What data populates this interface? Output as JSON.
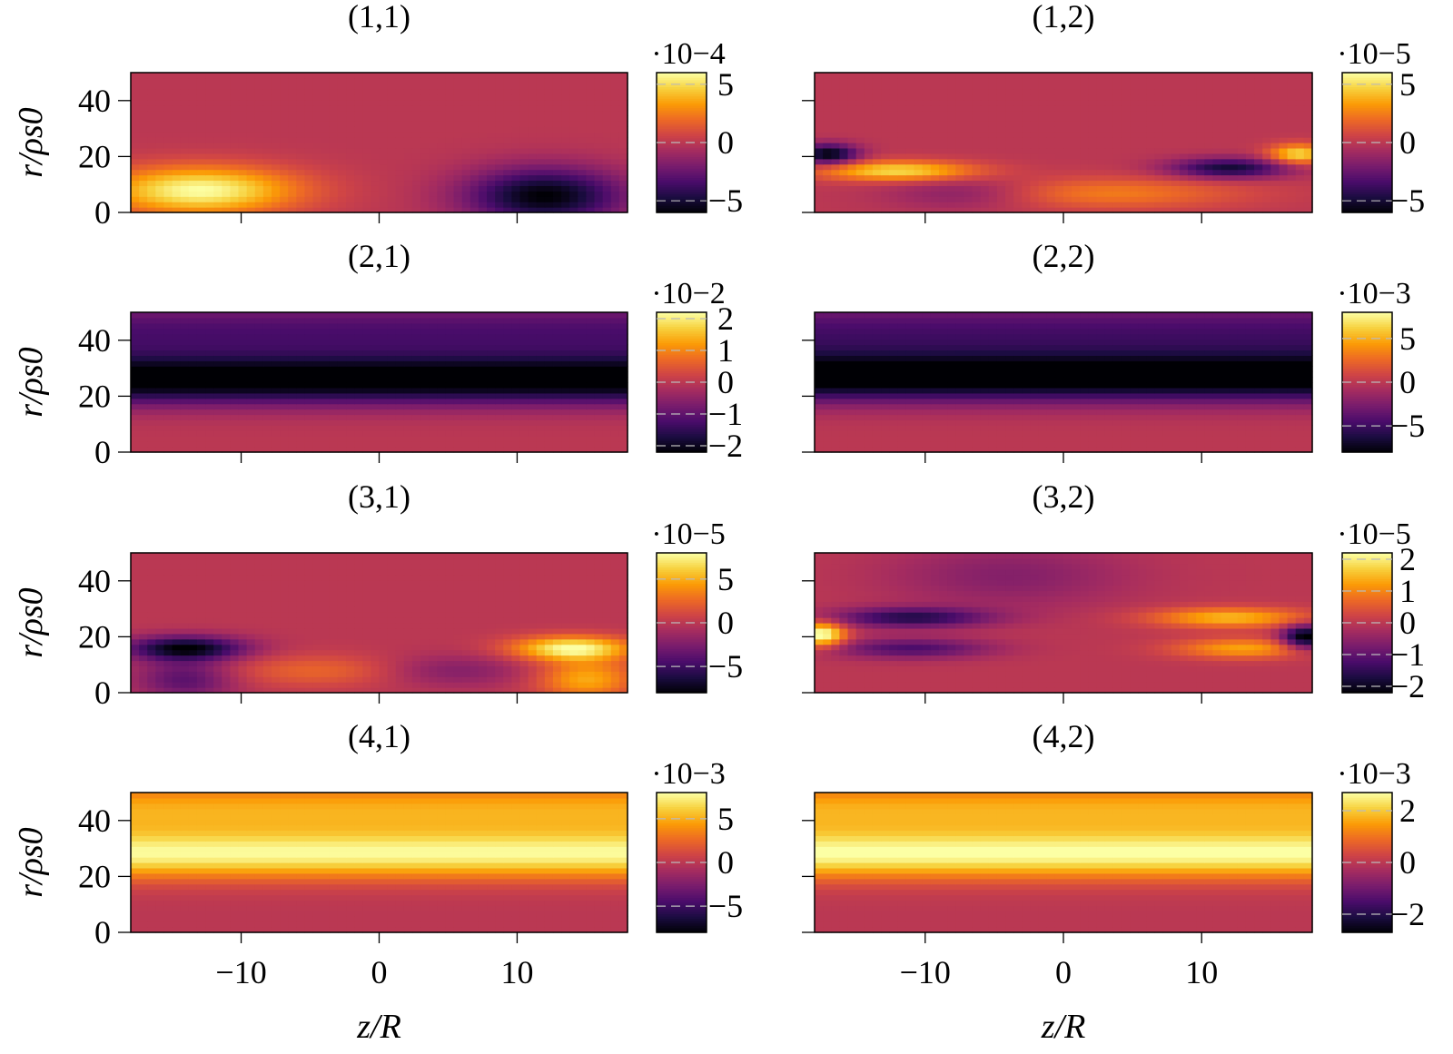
{
  "figure": {
    "y_axis_label": "r/ρs0",
    "x_axis_label": "z/R",
    "colormap": "inferno",
    "colormap_stops": [
      "#000004",
      "#1b0c41",
      "#4a0c6b",
      "#781c6d",
      "#a52c60",
      "#cf4446",
      "#ed6925",
      "#fb9b06",
      "#f7d13d",
      "#fcffa4"
    ]
  },
  "chart_data": [
    {
      "type": "heatmap",
      "title": "(1,1)",
      "xlim": [
        -18,
        18
      ],
      "ylim": [
        0,
        50
      ],
      "x_ticks": [
        -10,
        0,
        10
      ],
      "y_ticks": [
        0,
        20,
        40
      ],
      "y_tick_labels": [
        "0",
        "20",
        "40"
      ],
      "colorbar": {
        "scale_label": "·10−4",
        "range": [
          -6,
          6
        ],
        "ticks": [
          -5,
          0,
          5
        ],
        "tick_labels": [
          "−5",
          "0",
          "5"
        ]
      },
      "features": [
        {
          "z": -13,
          "r": 8,
          "value": 6,
          "sz": 5,
          "sr": 6
        },
        {
          "z": 12,
          "r": 6,
          "value": -6,
          "sz": 4,
          "sr": 7
        }
      ]
    },
    {
      "type": "heatmap",
      "title": "(1,2)",
      "xlim": [
        -18,
        18
      ],
      "ylim": [
        0,
        50
      ],
      "x_ticks": [
        -10,
        0,
        10
      ],
      "y_ticks": [
        0,
        20,
        40
      ],
      "y_tick_labels": [],
      "colorbar": {
        "scale_label": "·10−5",
        "range": [
          -6,
          6
        ],
        "ticks": [
          -5,
          0,
          5
        ],
        "tick_labels": [
          "−5",
          "0",
          "5"
        ]
      },
      "features": [
        {
          "z": -17,
          "r": 21,
          "value": -6,
          "sz": 1.5,
          "sr": 2.5
        },
        {
          "z": -12,
          "r": 15,
          "value": 5,
          "sz": 4,
          "sr": 2.5
        },
        {
          "z": 12,
          "r": 16,
          "value": -5,
          "sz": 3,
          "sr": 2.5
        },
        {
          "z": 17,
          "r": 21,
          "value": 5,
          "sz": 1.5,
          "sr": 2.5
        },
        {
          "z": 3,
          "r": 7,
          "value": 2.5,
          "sz": 7,
          "sr": 4
        },
        {
          "z": -7,
          "r": 7,
          "value": -2,
          "sz": 4,
          "sr": 4
        }
      ]
    },
    {
      "type": "heatmap",
      "title": "(2,1)",
      "xlim": [
        -18,
        18
      ],
      "ylim": [
        0,
        50
      ],
      "x_ticks": [
        -10,
        0,
        10
      ],
      "y_ticks": [
        0,
        20,
        40
      ],
      "y_tick_labels": [
        "0",
        "20",
        "40"
      ],
      "colorbar": {
        "scale_label": "·10−2",
        "range": [
          -2.2,
          2.2
        ],
        "ticks": [
          -2,
          -1,
          0,
          1,
          2
        ],
        "tick_labels": [
          "−2",
          "−1",
          "0",
          "1",
          "2"
        ]
      },
      "features": [
        {
          "z": 0,
          "r": 26,
          "value": -2.4,
          "sz": 1000,
          "sr": 6
        },
        {
          "z": 0,
          "r": 43,
          "value": -1.2,
          "sz": 1000,
          "sr": 8
        }
      ]
    },
    {
      "type": "heatmap",
      "title": "(2,2)",
      "xlim": [
        -18,
        18
      ],
      "ylim": [
        0,
        50
      ],
      "x_ticks": [
        -10,
        0,
        10
      ],
      "y_ticks": [
        0,
        20,
        40
      ],
      "y_tick_labels": [],
      "colorbar": {
        "scale_label": "·10−3",
        "range": [
          -8,
          8
        ],
        "ticks": [
          -5,
          0,
          5
        ],
        "tick_labels": [
          "−5",
          "0",
          "5"
        ]
      },
      "features": [
        {
          "z": 0,
          "r": 27,
          "value": -9,
          "sz": 1000,
          "sr": 6
        },
        {
          "z": 0,
          "r": 43,
          "value": -4.5,
          "sz": 1000,
          "sr": 8
        }
      ]
    },
    {
      "type": "heatmap",
      "title": "(3,1)",
      "xlim": [
        -18,
        18
      ],
      "ylim": [
        0,
        50
      ],
      "x_ticks": [
        -10,
        0,
        10
      ],
      "y_ticks": [
        0,
        20,
        40
      ],
      "y_tick_labels": [
        "0",
        "20",
        "40"
      ],
      "colorbar": {
        "scale_label": "·10−5",
        "range": [
          -8,
          8
        ],
        "ticks": [
          -5,
          0,
          5
        ],
        "tick_labels": [
          "−5",
          "0",
          "5"
        ]
      },
      "features": [
        {
          "z": -14,
          "r": 16,
          "value": -8,
          "sz": 3,
          "sr": 3
        },
        {
          "z": -14,
          "r": 5,
          "value": -4,
          "sz": 2.5,
          "sr": 5
        },
        {
          "z": 14,
          "r": 16,
          "value": 8,
          "sz": 3,
          "sr": 3
        },
        {
          "z": 15,
          "r": 5,
          "value": 5,
          "sz": 2.5,
          "sr": 5
        },
        {
          "z": -4,
          "r": 8,
          "value": 2.5,
          "sz": 5,
          "sr": 4
        },
        {
          "z": 5,
          "r": 8,
          "value": -2.5,
          "sz": 4,
          "sr": 4
        }
      ]
    },
    {
      "type": "heatmap",
      "title": "(3,2)",
      "xlim": [
        -18,
        18
      ],
      "ylim": [
        0,
        50
      ],
      "x_ticks": [
        -10,
        0,
        10
      ],
      "y_ticks": [
        0,
        20,
        40
      ],
      "y_tick_labels": [],
      "colorbar": {
        "scale_label": "·10−5",
        "range": [
          -2.2,
          2.2
        ],
        "ticks": [
          -2,
          -1,
          0,
          1,
          2
        ],
        "tick_labels": [
          "−2",
          "−1",
          "0",
          "1",
          "2"
        ]
      },
      "features": [
        {
          "z": -17.5,
          "r": 21,
          "value": 2.4,
          "sz": 1.2,
          "sr": 3
        },
        {
          "z": 17.5,
          "r": 20,
          "value": -2.4,
          "sz": 1.2,
          "sr": 3
        },
        {
          "z": -11,
          "r": 27,
          "value": -1.6,
          "sz": 4,
          "sr": 2.5
        },
        {
          "z": -11,
          "r": 16,
          "value": -1.2,
          "sz": 4,
          "sr": 2.5
        },
        {
          "z": 12,
          "r": 27,
          "value": 1.5,
          "sz": 4,
          "sr": 2.5
        },
        {
          "z": 13,
          "r": 16,
          "value": 1.3,
          "sz": 3.5,
          "sr": 2.5
        },
        {
          "z": -4,
          "r": 42,
          "value": -0.6,
          "sz": 6,
          "sr": 8
        }
      ]
    },
    {
      "type": "heatmap",
      "title": "(4,1)",
      "xlim": [
        -18,
        18
      ],
      "ylim": [
        0,
        50
      ],
      "x_ticks": [
        -10,
        0,
        10
      ],
      "y_ticks": [
        0,
        20,
        40
      ],
      "y_tick_labels": [
        "0",
        "20",
        "40"
      ],
      "x_tick_labels": [
        "−10",
        "0",
        "10"
      ],
      "colorbar": {
        "scale_label": "·10−3",
        "range": [
          -8,
          8
        ],
        "ticks": [
          -5,
          0,
          5
        ],
        "tick_labels": [
          "−5",
          "0",
          "5"
        ]
      },
      "features": [
        {
          "z": 0,
          "r": 28,
          "value": 7.5,
          "sz": 1000,
          "sr": 6
        },
        {
          "z": 0,
          "r": 44,
          "value": 5,
          "sz": 1000,
          "sr": 7
        }
      ]
    },
    {
      "type": "heatmap",
      "title": "(4,2)",
      "xlim": [
        -18,
        18
      ],
      "ylim": [
        0,
        50
      ],
      "x_ticks": [
        -10,
        0,
        10
      ],
      "y_ticks": [
        0,
        20,
        40
      ],
      "y_tick_labels": [],
      "x_tick_labels": [
        "−10",
        "0",
        "10"
      ],
      "colorbar": {
        "scale_label": "·10−3",
        "range": [
          -2.7,
          2.7
        ],
        "ticks": [
          -2,
          0,
          2
        ],
        "tick_labels": [
          "−2",
          "0",
          "2"
        ]
      },
      "features": [
        {
          "z": 0,
          "r": 28,
          "value": 2.6,
          "sz": 1000,
          "sr": 6
        },
        {
          "z": 0,
          "r": 44,
          "value": 1.7,
          "sz": 1000,
          "sr": 7
        }
      ]
    }
  ]
}
